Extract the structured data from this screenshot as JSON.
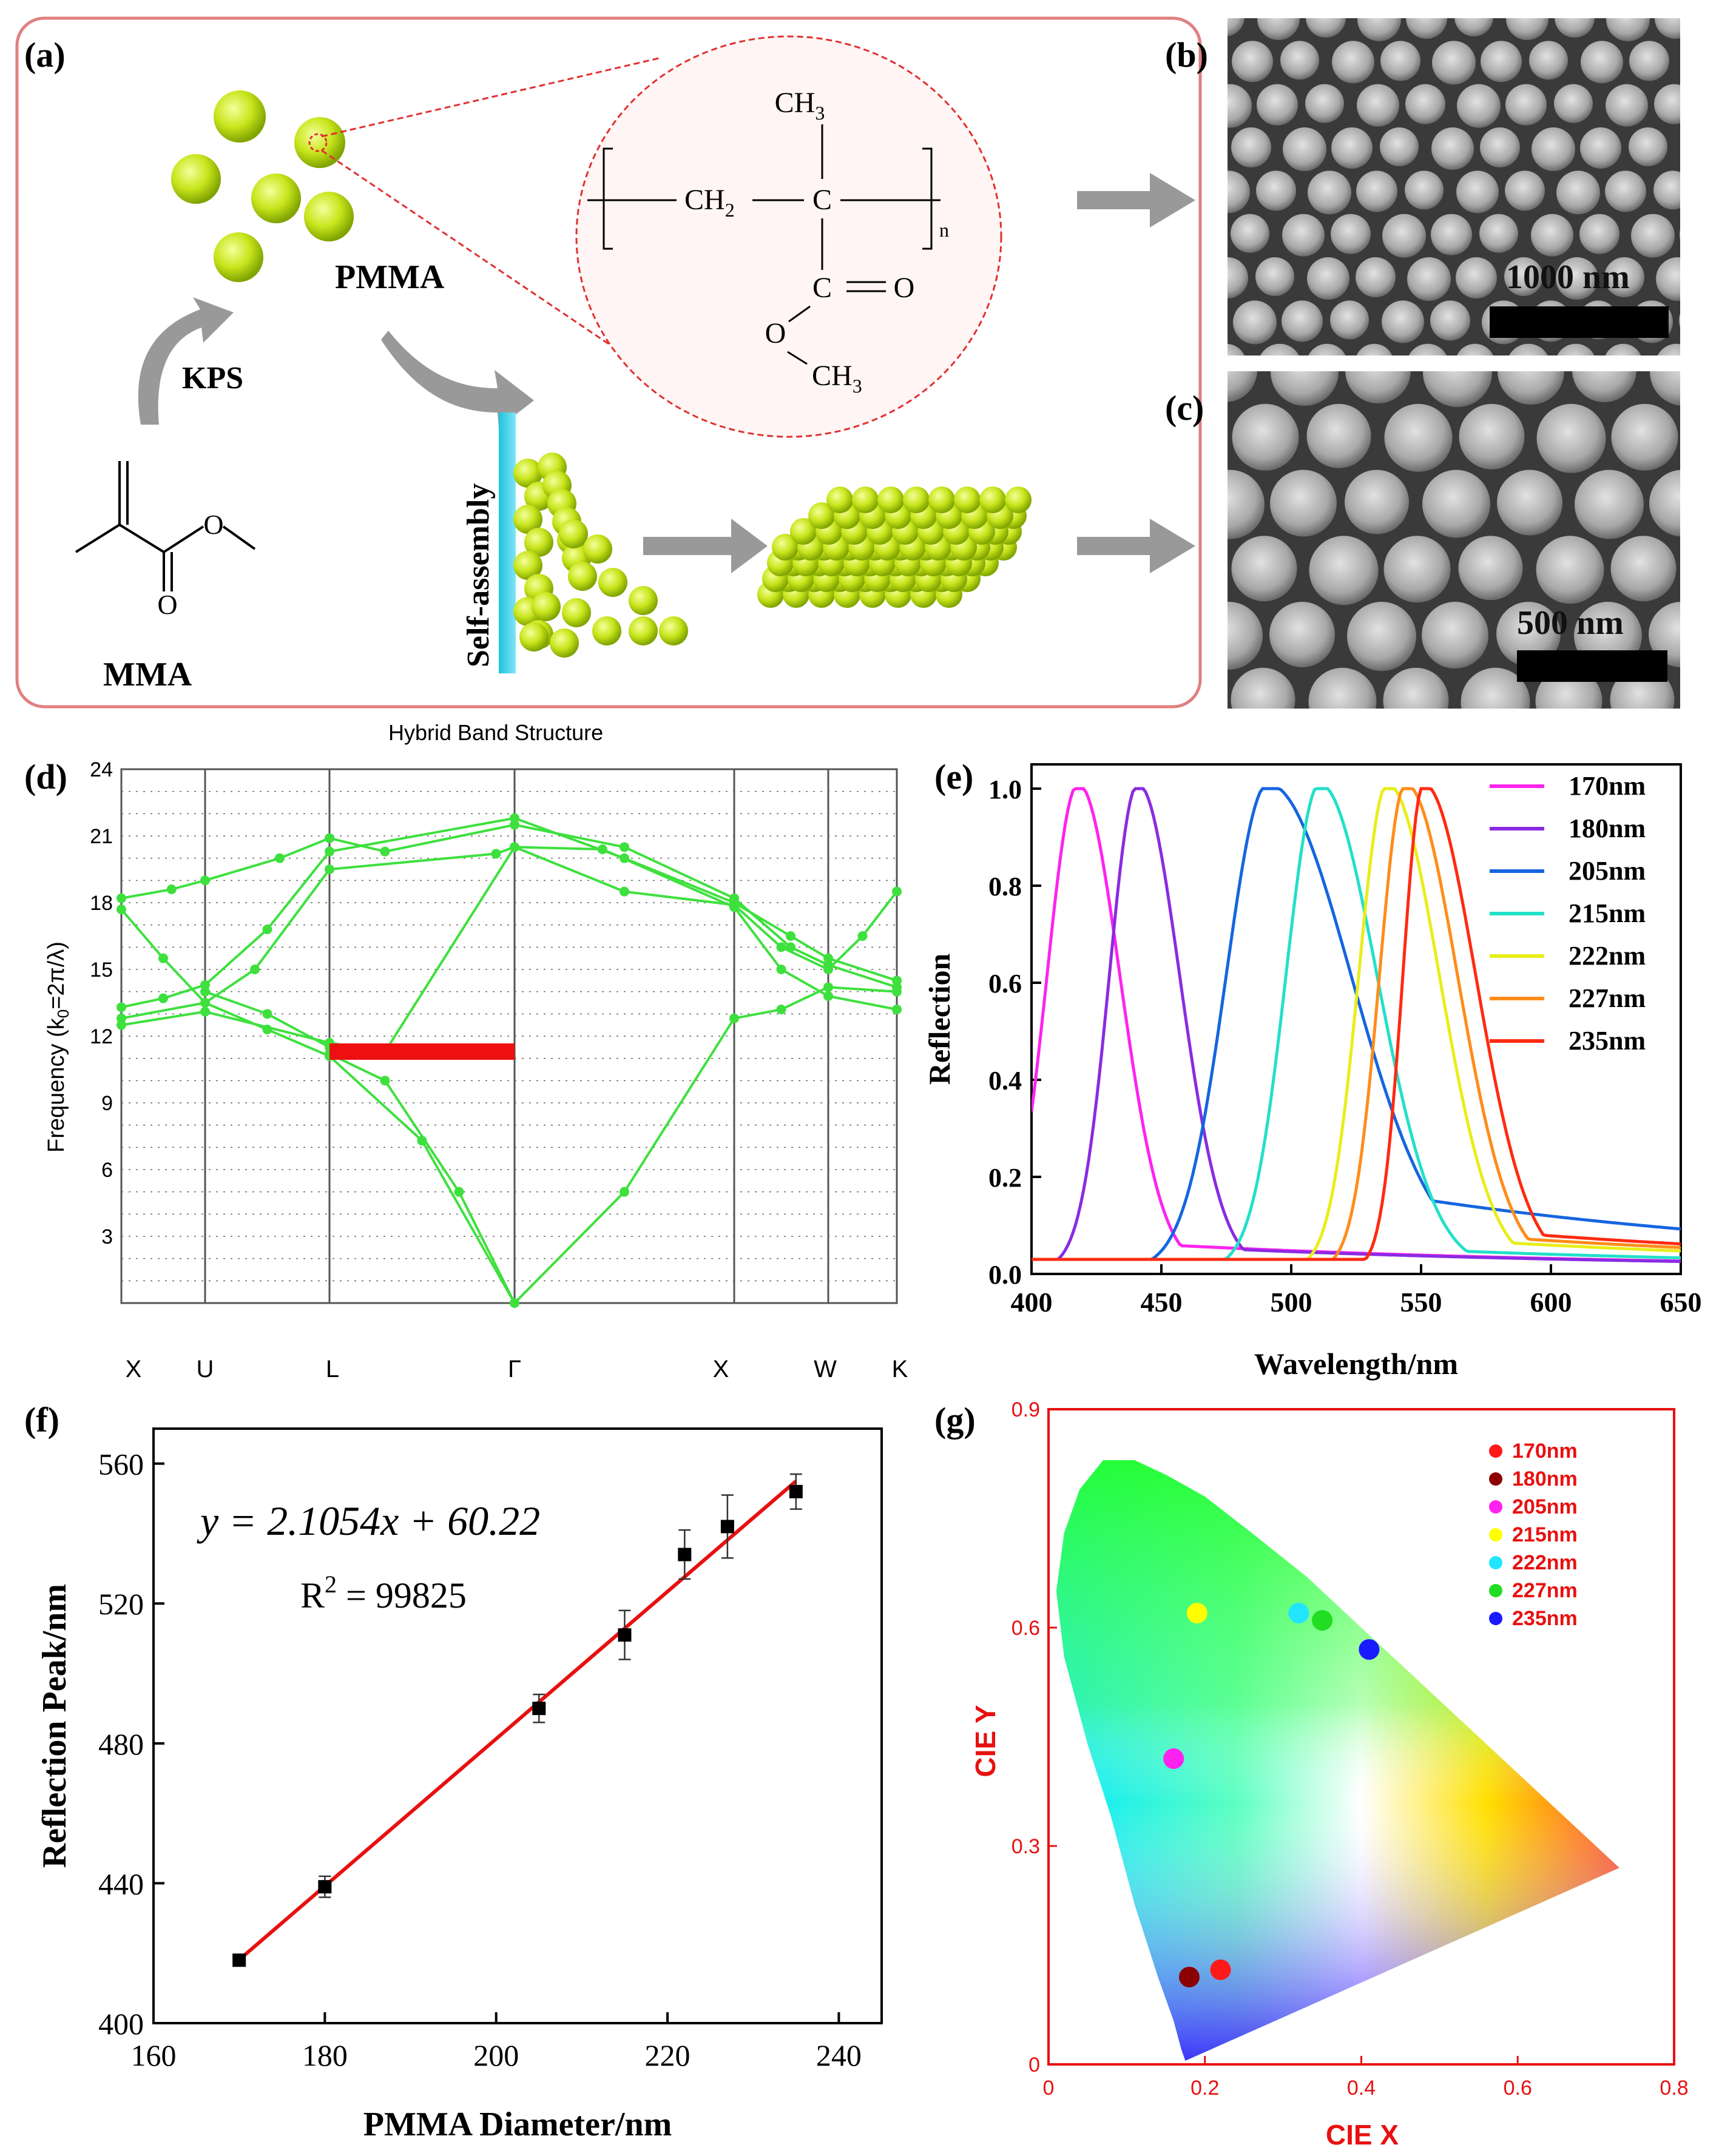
{
  "panel_labels": {
    "a": "(a)",
    "b": "(b)",
    "c": "(c)",
    "d": "(d)",
    "e": "(e)",
    "f": "(f)",
    "g": "(g)"
  },
  "panel_a": {
    "pmma_label": "PMMA",
    "kps_label": "KPS",
    "mma_label": "MMA",
    "self_assembly_label": "Self-assembly",
    "formula": {
      "ch3_top": "CH",
      "ch2": "CH",
      "c_center": "C",
      "c_lower": "C",
      "o_double": "O",
      "o_single": "O",
      "ch3_bottom": "CH",
      "sub3": "3",
      "sub2": "2",
      "n": "n",
      "eq": "="
    },
    "mma_o": "O"
  },
  "sem": {
    "b_scale": "1000 nm",
    "c_scale": "500 nm"
  },
  "panel_d": {
    "title": "Hybrid Band Structure",
    "ylabel": "Frequency (k",
    "ylabel_sub": "0",
    "ylabel_tail": "=2π/λ)",
    "yticks": [
      "3",
      "6",
      "9",
      "12",
      "15",
      "18",
      "21",
      "24"
    ],
    "kpoints": [
      "X",
      "U",
      "L",
      "Γ",
      "X",
      "W",
      "K"
    ]
  },
  "chart_data": [
    {
      "type": "line",
      "id": "e",
      "title": "",
      "xlabel": "Wavelength/nm",
      "ylabel": "Reflection",
      "xlim": [
        400,
        650
      ],
      "ylim": [
        0,
        1.05
      ],
      "xticks": [
        "400",
        "450",
        "500",
        "550",
        "600",
        "650"
      ],
      "yticks": [
        "0.0",
        "0.2",
        "0.4",
        "0.6",
        "0.8",
        "1.0"
      ],
      "series": [
        {
          "name": "170nm",
          "color": "#ff22ee",
          "peak": 418,
          "wl": 12,
          "wr": 16,
          "tail": 0.06
        },
        {
          "name": "180nm",
          "color": "#8a2be2",
          "peak": 441,
          "wl": 11,
          "wr": 16,
          "tail": 0.05
        },
        {
          "name": "205nm",
          "color": "#1565e0",
          "peak": 491,
          "wl": 16,
          "wr": 32,
          "tail": 0.2
        },
        {
          "name": "215nm",
          "color": "#22e0c8",
          "peak": 511,
          "wl": 13,
          "wr": 22,
          "tail": 0.05
        },
        {
          "name": "222nm",
          "color": "#e8ee1a",
          "peak": 537,
          "wl": 11,
          "wr": 20,
          "tail": 0.07
        },
        {
          "name": "227nm",
          "color": "#ff8c1a",
          "peak": 544,
          "wl": 10,
          "wr": 20,
          "tail": 0.08
        },
        {
          "name": "235nm",
          "color": "#ff2a10",
          "peak": 551,
          "wl": 8,
          "wr": 20,
          "tail": 0.09
        }
      ]
    },
    {
      "type": "scatter",
      "id": "f",
      "xlabel": "PMMA Diameter/nm",
      "ylabel": "Reflection Peak/nm",
      "xlim": [
        160,
        245
      ],
      "ylim": [
        400,
        570
      ],
      "xticks": [
        "160",
        "180",
        "200",
        "220",
        "240"
      ],
      "yticks": [
        "400",
        "440",
        "480",
        "520",
        "560"
      ],
      "x": [
        170,
        180,
        205,
        215,
        222,
        227,
        235
      ],
      "y": [
        418,
        439,
        490,
        511,
        534,
        542,
        552
      ],
      "err": [
        1,
        3,
        4,
        7,
        7,
        9,
        5
      ],
      "fit": {
        "slope": 2.1054,
        "intercept": 60.22
      },
      "equation": "y = 2.1054x + 60.22",
      "r2_label": "R",
      "r2_sup": "2",
      "r2_value": " = 99825"
    },
    {
      "type": "scatter",
      "id": "g",
      "xlabel": "CIE X",
      "ylabel": "CIE Y",
      "xlim": [
        0,
        0.8
      ],
      "ylim": [
        0,
        0.9
      ],
      "xticks": [
        "0",
        "0.2",
        "0.4",
        "0.6",
        "0.8"
      ],
      "yticks": [
        "0",
        "0.3",
        "0.6",
        "0.9"
      ],
      "points": [
        {
          "name": "170nm",
          "color": "#ff1a1a",
          "x": 0.22,
          "y": 0.13
        },
        {
          "name": "180nm",
          "color": "#8b0000",
          "x": 0.18,
          "y": 0.12
        },
        {
          "name": "205nm",
          "color": "#ff22ee",
          "x": 0.16,
          "y": 0.42
        },
        {
          "name": "215nm",
          "color": "#ffff00",
          "x": 0.19,
          "y": 0.62
        },
        {
          "name": "222nm",
          "color": "#22e5ff",
          "x": 0.32,
          "y": 0.62
        },
        {
          "name": "227nm",
          "color": "#22dd22",
          "x": 0.35,
          "y": 0.61
        },
        {
          "name": "235nm",
          "color": "#1a1aff",
          "x": 0.41,
          "y": 0.57
        }
      ]
    }
  ]
}
